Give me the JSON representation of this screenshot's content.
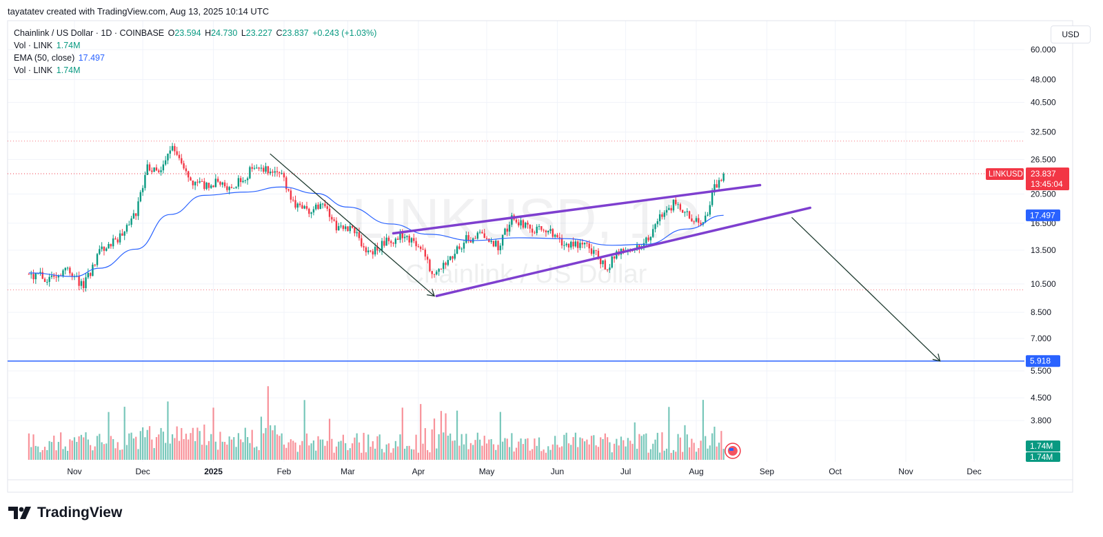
{
  "header": {
    "credit": "tayatatev created with TradingView.com, Aug 13, 2025 10:14 UTC"
  },
  "legend": {
    "symbol": "Chainlink / US Dollar · 1D · COINBASE",
    "o_label": "O",
    "o_value": "23.594",
    "h_label": "H",
    "h_value": "24.730",
    "l_label": "L",
    "l_value": "23.227",
    "c_label": "C",
    "c_value": "23.837",
    "change": "+0.243 (+1.03%)",
    "vol1_label": "Vol · LINK",
    "vol1_value": "1.74M",
    "ema_label": "EMA (50, close)",
    "ema_value": "17.497",
    "vol2_label": "Vol · LINK",
    "vol2_value": "1.74M"
  },
  "currency_button": "USD",
  "watermark": {
    "ticker": "LINKUSD, 1D",
    "name": "Chainlink / US Dollar"
  },
  "footer": {
    "brand": "TradingView"
  },
  "colors": {
    "up": "#089981",
    "down": "#f23645",
    "ema": "#2962ff",
    "channel": "#7e3fcf",
    "target_line": "#2962ff",
    "arrow": "#1e3a2f"
  },
  "chart_data": {
    "type": "candlestick",
    "symbol": "LINKUSD",
    "interval": "1D",
    "y_scale": "log",
    "y_ticks": [
      "60.000",
      "48.000",
      "40.500",
      "32.500",
      "26.500",
      "20.500",
      "16.500",
      "13.500",
      "10.500",
      "8.500",
      "7.000",
      "5.500",
      "4.500",
      "3.800"
    ],
    "x_ticks": [
      "Nov",
      "Dec",
      "2025",
      "Feb",
      "Mar",
      "Apr",
      "May",
      "Jun",
      "Jul",
      "Aug",
      "Sep",
      "Oct",
      "Nov",
      "Dec"
    ],
    "last_price": {
      "ticker": "LINKUSD",
      "value": "23.837",
      "countdown": "13:45:04"
    },
    "ema_last": "17.497",
    "target": "5.918",
    "volume_last": [
      "1.74M",
      "1.74M"
    ],
    "price_path": [
      [
        "2024-10-12",
        11.3
      ],
      [
        "2024-10-20",
        11.0
      ],
      [
        "2024-10-28",
        11.7
      ],
      [
        "2024-11-05",
        10.3
      ],
      [
        "2024-11-12",
        13.4
      ],
      [
        "2024-11-20",
        14.6
      ],
      [
        "2024-11-28",
        18.0
      ],
      [
        "2024-12-03",
        25.0
      ],
      [
        "2024-12-08",
        24.3
      ],
      [
        "2024-12-13",
        29.0
      ],
      [
        "2024-12-18",
        26.0
      ],
      [
        "2024-12-22",
        22.2
      ],
      [
        "2024-12-27",
        21.8
      ],
      [
        "2025-01-03",
        22.3
      ],
      [
        "2025-01-09",
        21.2
      ],
      [
        "2025-01-15",
        23.5
      ],
      [
        "2025-01-20",
        25.3
      ],
      [
        "2025-01-26",
        24.6
      ],
      [
        "2025-01-31",
        23.4
      ],
      [
        "2025-02-05",
        19.0
      ],
      [
        "2025-02-12",
        18.3
      ],
      [
        "2025-02-18",
        18.8
      ],
      [
        "2025-02-24",
        16.2
      ],
      [
        "2025-03-03",
        15.9
      ],
      [
        "2025-03-10",
        13.2
      ],
      [
        "2025-03-18",
        14.4
      ],
      [
        "2025-03-26",
        15.0
      ],
      [
        "2025-04-02",
        13.7
      ],
      [
        "2025-04-07",
        11.3
      ],
      [
        "2025-04-14",
        12.6
      ],
      [
        "2025-04-22",
        14.6
      ],
      [
        "2025-04-28",
        15.1
      ],
      [
        "2025-05-06",
        13.9
      ],
      [
        "2025-05-12",
        17.0
      ],
      [
        "2025-05-20",
        16.0
      ],
      [
        "2025-05-28",
        15.5
      ],
      [
        "2025-06-05",
        13.7
      ],
      [
        "2025-06-12",
        14.4
      ],
      [
        "2025-06-18",
        13.1
      ],
      [
        "2025-06-22",
        11.8
      ],
      [
        "2025-06-28",
        13.2
      ],
      [
        "2025-07-05",
        13.5
      ],
      [
        "2025-07-12",
        15.3
      ],
      [
        "2025-07-17",
        17.6
      ],
      [
        "2025-07-22",
        19.0
      ],
      [
        "2025-07-29",
        17.2
      ],
      [
        "2025-08-03",
        16.3
      ],
      [
        "2025-08-06",
        17.6
      ],
      [
        "2025-08-09",
        21.7
      ],
      [
        "2025-08-13",
        23.837
      ]
    ],
    "ema_path": [
      [
        "2024-10-12",
        11.4
      ],
      [
        "2024-11-01",
        11.1
      ],
      [
        "2024-11-12",
        11.8
      ],
      [
        "2024-11-28",
        13.6
      ],
      [
        "2024-12-13",
        17.6
      ],
      [
        "2024-12-28",
        20.3
      ],
      [
        "2025-01-15",
        20.8
      ],
      [
        "2025-01-31",
        21.6
      ],
      [
        "2025-02-15",
        20.6
      ],
      [
        "2025-03-01",
        18.6
      ],
      [
        "2025-03-20",
        16.4
      ],
      [
        "2025-04-05",
        15.2
      ],
      [
        "2025-04-25",
        14.5
      ],
      [
        "2025-05-15",
        14.8
      ],
      [
        "2025-06-05",
        14.7
      ],
      [
        "2025-06-25",
        14.0
      ],
      [
        "2025-07-10",
        14.1
      ],
      [
        "2025-07-28",
        15.8
      ],
      [
        "2025-08-13",
        17.497
      ]
    ],
    "drawings": {
      "down_arrow_1": {
        "from": [
          "2025-01-26",
          27.6
        ],
        "to": [
          "2025-04-08",
          9.6
        ]
      },
      "channel_upper": {
        "from": [
          "2025-03-21",
          15.3
        ],
        "to": [
          "2025-08-29",
          21.9
        ]
      },
      "channel_lower": {
        "from": [
          "2025-04-09",
          9.6
        ],
        "to": [
          "2025-09-20",
          18.5
        ]
      },
      "down_arrow_2": {
        "from": [
          "2025-09-12",
          17.2
        ],
        "to": [
          "2025-11-16",
          5.918
        ]
      },
      "target_line": 5.918
    }
  }
}
